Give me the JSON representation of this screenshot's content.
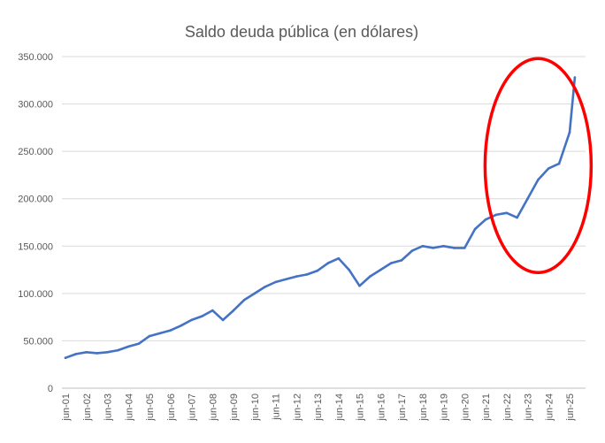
{
  "chart_data": {
    "type": "line",
    "title": "Saldo deuda pública (en dólares)",
    "xlabel": "",
    "ylabel": "",
    "ylim": [
      0,
      350000
    ],
    "y_ticks": [
      "0",
      "50.000",
      "100.000",
      "150.000",
      "200.000",
      "250.000",
      "300.000",
      "350.000"
    ],
    "x_ticks": [
      "jun-01",
      "jun-02",
      "jun-03",
      "jun-04",
      "jun-05",
      "jun-06",
      "jun-07",
      "jun-08",
      "jun-09",
      "jun-10",
      "jun-11",
      "jun-12",
      "jun-13",
      "jun-14",
      "jun-15",
      "jun-16",
      "jun-17",
      "jun-18",
      "jun-19",
      "jun-20",
      "jun-21",
      "jun-22",
      "jun-23",
      "jun-24",
      "jun-25"
    ],
    "grid": "horizontal",
    "legend": "none",
    "line_color": "#4472C4",
    "highlight_color": "#FF0000",
    "series": [
      {
        "x": [
          "jun-01",
          "dic-01",
          "jun-02",
          "dic-02",
          "jun-03",
          "dic-03",
          "jun-04",
          "dic-04",
          "jun-05",
          "dic-05",
          "jun-06",
          "dic-06",
          "jun-07",
          "dic-07",
          "jun-08",
          "dic-08",
          "jun-09",
          "dic-09",
          "jun-10",
          "dic-10",
          "jun-11",
          "dic-11",
          "jun-12",
          "dic-12",
          "jun-13",
          "dic-13",
          "jun-14",
          "dic-14",
          "jun-15",
          "dic-15",
          "jun-16",
          "dic-16",
          "jun-17",
          "dic-17",
          "jun-18",
          "dic-18",
          "jun-19",
          "dic-19",
          "jun-20",
          "dic-20",
          "jun-21",
          "dic-21",
          "jun-22",
          "dic-22",
          "jun-23",
          "dic-23",
          "jun-24",
          "dic-24",
          "jun-25",
          "sep-25"
        ],
        "values": [
          32000,
          36000,
          38000,
          37000,
          38000,
          40000,
          44000,
          47000,
          55000,
          58000,
          61000,
          66000,
          72000,
          76000,
          82000,
          72000,
          82000,
          93000,
          100000,
          107000,
          112000,
          115000,
          118000,
          120000,
          124000,
          132000,
          137000,
          125000,
          108000,
          118000,
          125000,
          132000,
          135000,
          145000,
          150000,
          148000,
          150000,
          148000,
          148000,
          168000,
          178000,
          183000,
          185000,
          180000,
          200000,
          220000,
          232000,
          237000,
          270000,
          328000
        ]
      }
    ],
    "annotations": [
      {
        "type": "ellipse",
        "label": "",
        "x_center": "dic-23",
        "y_center": 235000
      }
    ]
  }
}
